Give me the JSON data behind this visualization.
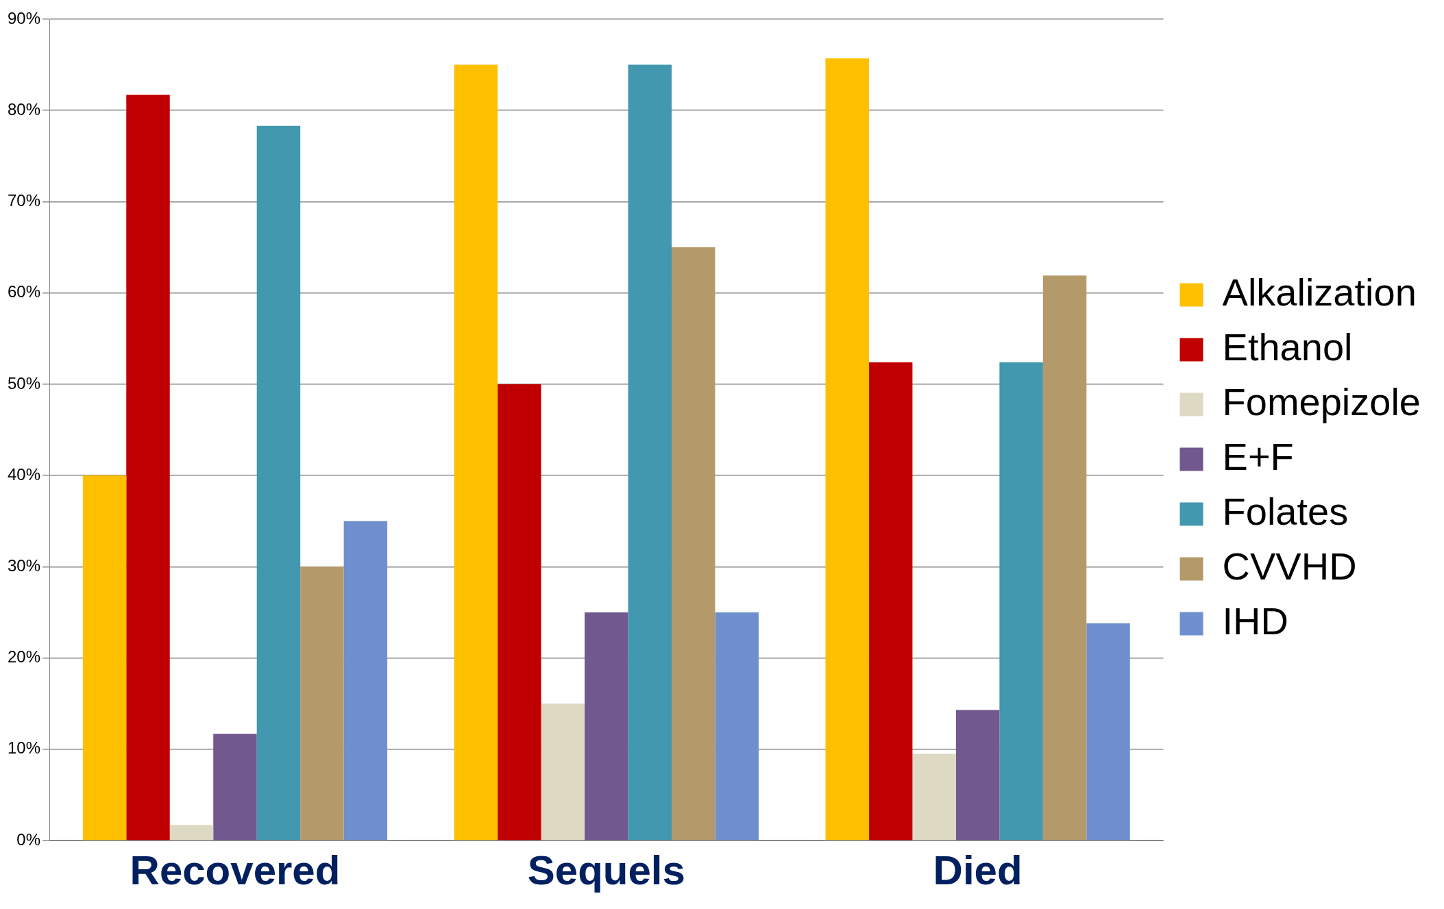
{
  "chart_data": {
    "type": "bar",
    "categories": [
      "Recovered",
      "Sequels",
      "Died"
    ],
    "series": [
      {
        "name": "Alkalization",
        "color": "#ffc000",
        "values": [
          40,
          85,
          85.7
        ]
      },
      {
        "name": "Ethanol",
        "color": "#c00000",
        "values": [
          81.7,
          50,
          52.4
        ]
      },
      {
        "name": "Fomepizole",
        "color": "#ddd9c3",
        "values": [
          1.7,
          15,
          9.5
        ]
      },
      {
        "name": "E+F",
        "color": "#71588f",
        "values": [
          11.7,
          25,
          14.3
        ]
      },
      {
        "name": "Folates",
        "color": "#4198af",
        "values": [
          78.3,
          85,
          52.4
        ]
      },
      {
        "name": "CVVHD",
        "color": "#b49a6a",
        "values": [
          30,
          65,
          61.9
        ]
      },
      {
        "name": "IHD",
        "color": "#6f8fcf",
        "values": [
          35,
          25,
          23.8
        ]
      }
    ],
    "ylim": [
      0,
      90
    ],
    "yticks": [
      {
        "value": 0,
        "label": "0%"
      },
      {
        "value": 10,
        "label": "10%"
      },
      {
        "value": 20,
        "label": "20%"
      },
      {
        "value": 30,
        "label": "30%"
      },
      {
        "value": 40,
        "label": "40%"
      },
      {
        "value": 50,
        "label": "50%"
      },
      {
        "value": 60,
        "label": "60%"
      },
      {
        "value": 70,
        "label": "70%"
      },
      {
        "value": 80,
        "label": "80%"
      },
      {
        "value": 90,
        "label": "90%"
      }
    ],
    "grid": "y",
    "legend": "right"
  }
}
